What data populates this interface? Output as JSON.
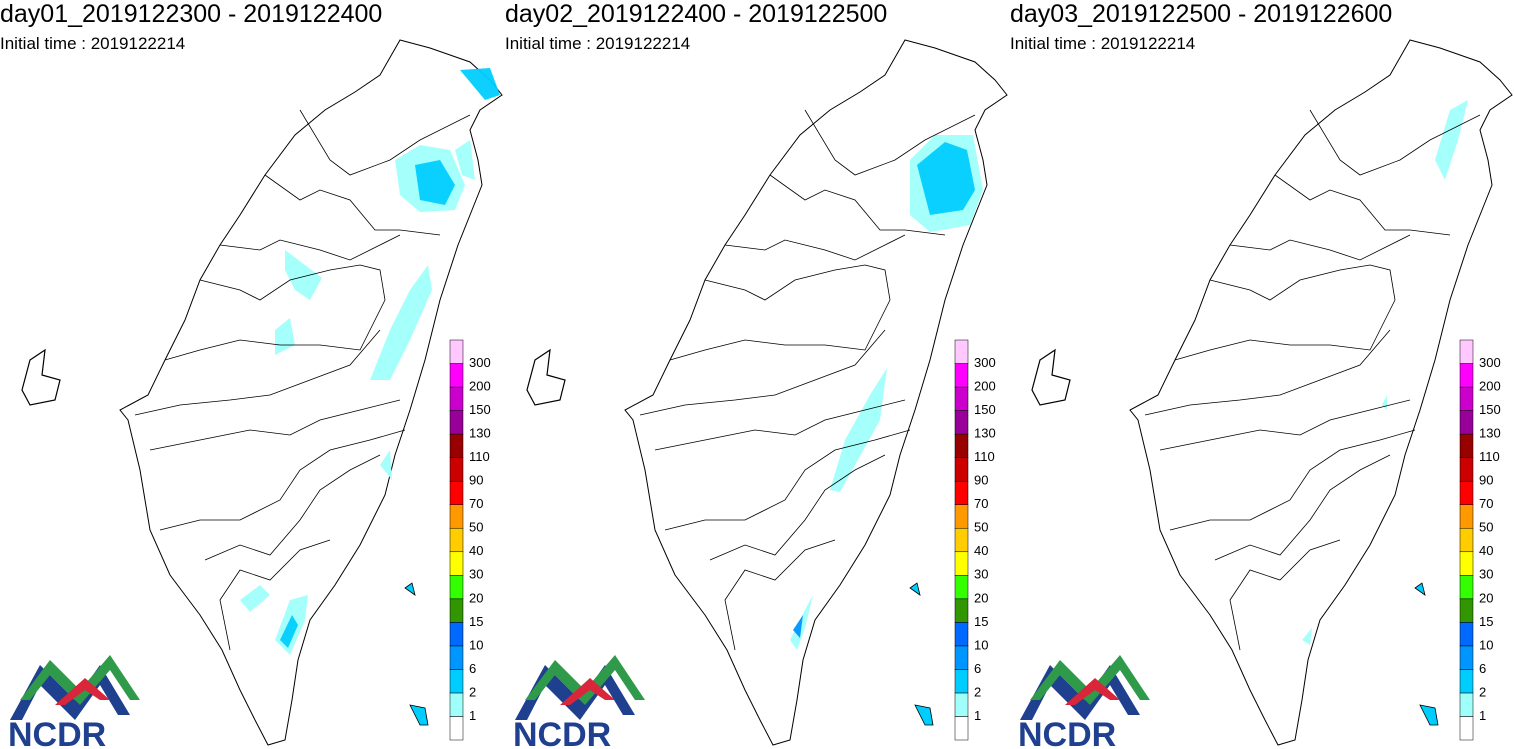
{
  "panels": [
    {
      "title": "day01_2019122300 - 2019122400",
      "initial_time": "Initial time : 2019122214"
    },
    {
      "title": "day02_2019122400 - 2019122500",
      "initial_time": "Initial time : 2019122214"
    },
    {
      "title": "day03_2019122500 - 2019122600",
      "initial_time": "Initial time : 2019122214"
    }
  ],
  "legend": {
    "labels": [
      "1",
      "2",
      "6",
      "10",
      "15",
      "20",
      "30",
      "40",
      "50",
      "70",
      "90",
      "110",
      "130",
      "150",
      "200",
      "300"
    ],
    "colors": [
      "#ffffff",
      "#a0fffa",
      "#00cdff",
      "#0096ff",
      "#0069ff",
      "#329600",
      "#33ff00",
      "#ffff00",
      "#ffcc00",
      "#ff9900",
      "#ff0000",
      "#cc0000",
      "#990000",
      "#990099",
      "#cc00cc",
      "#ff00ff",
      "#ffc8ff"
    ]
  },
  "logo": "NCDR"
}
